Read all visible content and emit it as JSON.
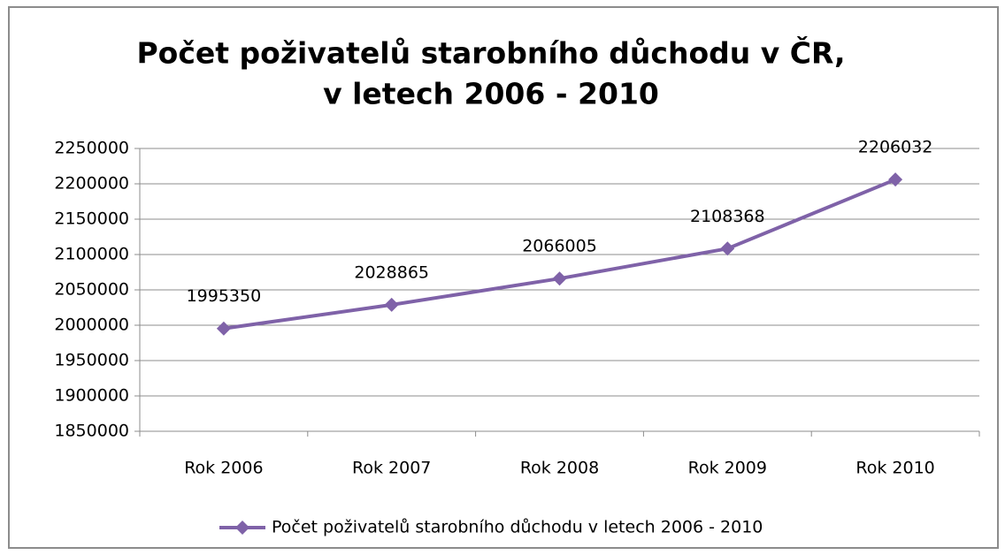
{
  "chart_data": {
    "type": "line",
    "title": [
      "Počet poživatelů starobního důchodu v ČR,",
      "v letech 2006 - 2010"
    ],
    "categories": [
      "Rok 2006",
      "Rok 2007",
      "Rok 2008",
      "Rok 2009",
      "Rok 2010"
    ],
    "series": [
      {
        "name": "Počet poživatelů starobního důchodu v letech 2006 - 2010",
        "color": "#7f62a8",
        "values": [
          1995350,
          2028865,
          2066005,
          2108368,
          2206032
        ]
      }
    ],
    "ylim": [
      1850000,
      2250000
    ],
    "yticks": [
      1850000,
      1900000,
      1950000,
      2000000,
      2050000,
      2100000,
      2150000,
      2200000,
      2250000
    ],
    "grid": true,
    "legend": "bottom"
  }
}
